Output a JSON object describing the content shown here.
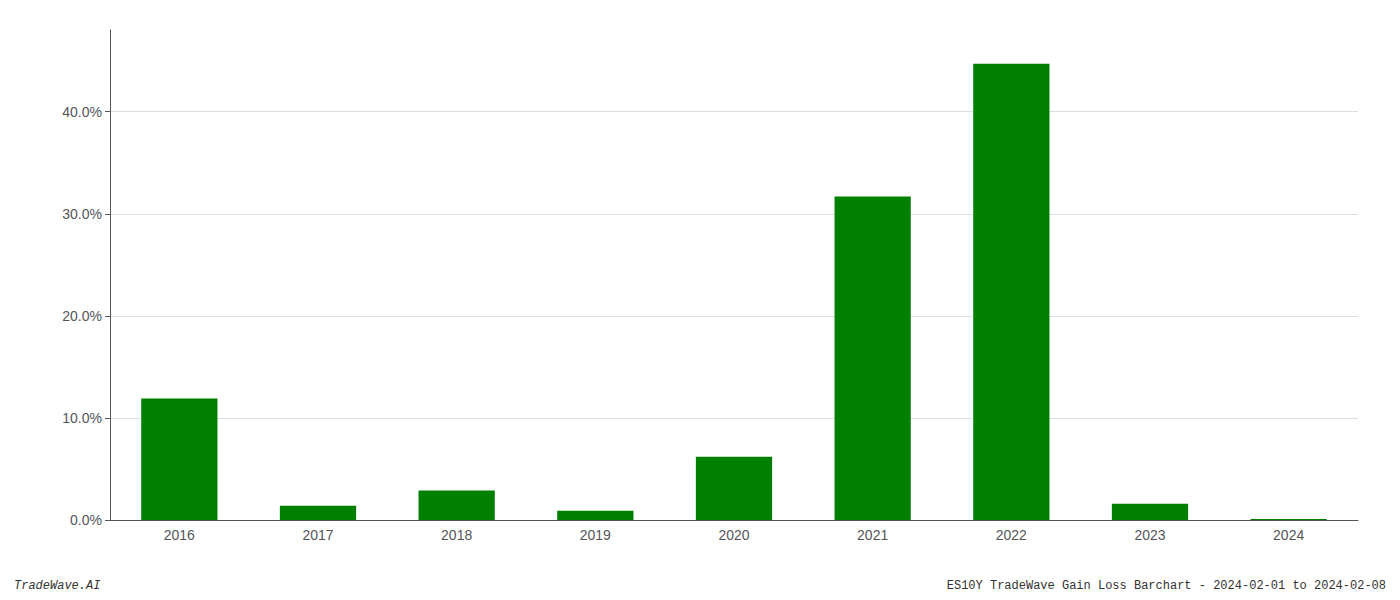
{
  "chart_data": {
    "type": "bar",
    "categories": [
      "2016",
      "2017",
      "2018",
      "2019",
      "2020",
      "2021",
      "2022",
      "2023",
      "2024"
    ],
    "values": [
      0.119,
      0.014,
      0.029,
      0.009,
      0.062,
      0.317,
      0.447,
      0.016,
      0.001
    ],
    "color": "#008000",
    "ylim": [
      0,
      0.48
    ],
    "yticks": [
      {
        "value": 0.0,
        "label": "0.0%"
      },
      {
        "value": 0.1,
        "label": "10.0%"
      },
      {
        "value": 0.2,
        "label": "20.0%"
      },
      {
        "value": 0.3,
        "label": "30.0%"
      },
      {
        "value": 0.4,
        "label": "40.0%"
      }
    ],
    "grid": true,
    "annotations": [
      "TradeWave.AI",
      "ES10Y TradeWave Gain Loss Barchart - 2024-02-01 to 2024-02-08"
    ]
  }
}
